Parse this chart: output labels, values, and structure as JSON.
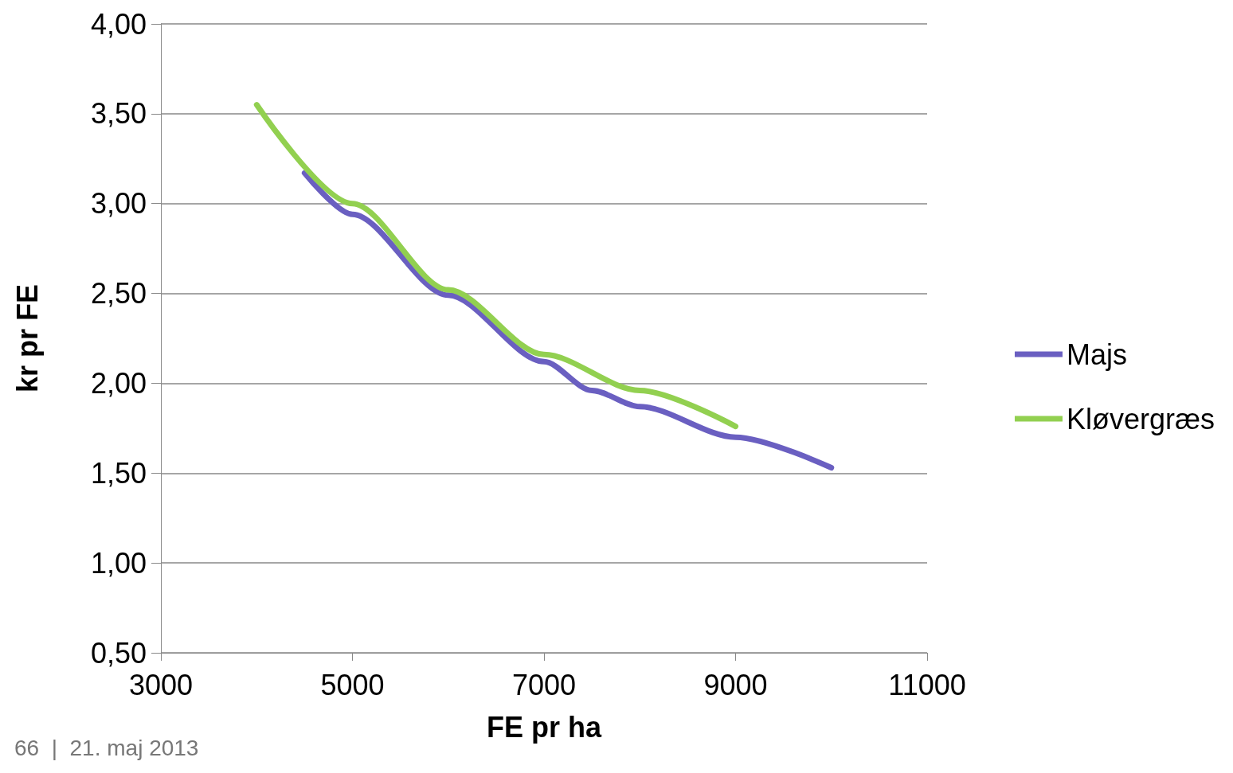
{
  "chart_data": {
    "type": "line",
    "xlabel": "FE pr ha",
    "ylabel": "kr pr FE",
    "annotations": [
      "66  |  21. maj 2013"
    ],
    "series": [
      {
        "name": "Majs",
        "color": "#6a5fc1",
        "x": [
          4500,
          5000,
          6000,
          7000,
          7500,
          8000,
          9000,
          10000
        ],
        "values": [
          3.17,
          2.94,
          2.49,
          2.12,
          1.96,
          1.87,
          1.7,
          1.53
        ]
      },
      {
        "name": "Kløvergræs",
        "color": "#92d050",
        "x": [
          4000,
          5000,
          6000,
          7000,
          8000,
          9000
        ],
        "values": [
          3.55,
          3.0,
          2.52,
          2.16,
          1.96,
          1.76
        ]
      }
    ],
    "xlim": [
      3000,
      11000
    ],
    "xticks": [
      3000,
      5000,
      7000,
      9000,
      11000
    ],
    "ylim": [
      0.5,
      4.0
    ],
    "yticks": [
      {
        "value": 0.5,
        "label": "0,50"
      },
      {
        "value": 1.0,
        "label": "1,00"
      },
      {
        "value": 1.5,
        "label": "1,50"
      },
      {
        "value": 2.0,
        "label": "2,00"
      },
      {
        "value": 2.5,
        "label": "2,50"
      },
      {
        "value": 3.0,
        "label": "3,00"
      },
      {
        "value": 3.5,
        "label": "3,50"
      },
      {
        "value": 4.0,
        "label": "4,00"
      }
    ],
    "grid": "y",
    "legend": "right",
    "marker": "none",
    "line_style": "solid"
  }
}
